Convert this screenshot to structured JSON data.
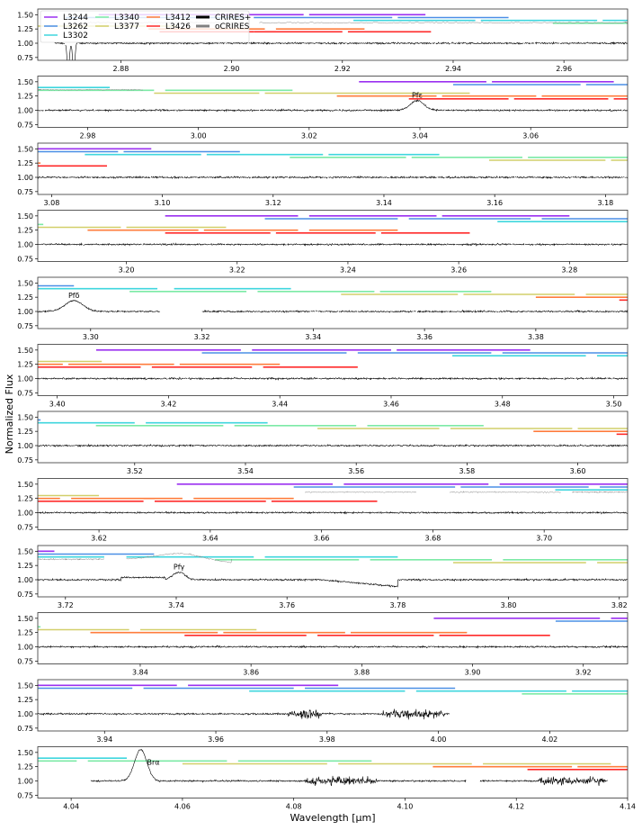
{
  "chart_data": {
    "type": "line",
    "title": "",
    "xlabel": "Wavelength [μm]",
    "ylabel": "Normalized Flux",
    "ylim": [
      0.7,
      1.6
    ],
    "yticks": [
      "0.75",
      "1.00",
      "1.25",
      "1.50"
    ],
    "grid": false,
    "legend_placement": "top-left of first panel",
    "panels": [
      {
        "xlim": [
          2.865,
          2.9715
        ],
        "xticks": [
          "2.88",
          "2.90",
          "2.92",
          "2.94",
          "2.96"
        ]
      },
      {
        "xlim": [
          2.971,
          3.0775
        ],
        "xticks": [
          "2.98",
          "3.00",
          "3.02",
          "3.04",
          "3.06"
        ]
      },
      {
        "xlim": [
          3.0775,
          3.184
        ],
        "xticks": [
          "3.08",
          "3.10",
          "3.12",
          "3.14",
          "3.16",
          "3.18"
        ]
      },
      {
        "xlim": [
          3.184,
          3.2905
        ],
        "xticks": [
          "3.20",
          "3.22",
          "3.24",
          "3.26",
          "3.28"
        ]
      },
      {
        "xlim": [
          3.2905,
          3.3965
        ],
        "xticks": [
          "3.30",
          "3.32",
          "3.34",
          "3.36",
          "3.38"
        ]
      },
      {
        "xlim": [
          3.3965,
          3.5025
        ],
        "xticks": [
          "3.40",
          "3.42",
          "3.44",
          "3.46",
          "3.48",
          "3.50"
        ]
      },
      {
        "xlim": [
          3.5025,
          3.609
        ],
        "xticks": [
          "3.52",
          "3.54",
          "3.56",
          "3.58",
          "3.60"
        ]
      },
      {
        "xlim": [
          3.609,
          3.715
        ],
        "xticks": [
          "3.62",
          "3.64",
          "3.66",
          "3.68",
          "3.70"
        ]
      },
      {
        "xlim": [
          3.715,
          3.8215
        ],
        "xticks": [
          "3.72",
          "3.74",
          "3.76",
          "3.78",
          "3.80",
          "3.82"
        ]
      },
      {
        "xlim": [
          3.8215,
          3.928
        ],
        "xticks": [
          "3.84",
          "3.86",
          "3.88",
          "3.90",
          "3.92"
        ]
      },
      {
        "xlim": [
          3.928,
          4.034
        ],
        "xticks": [
          "3.94",
          "3.96",
          "3.98",
          "4.00",
          "4.02"
        ]
      },
      {
        "xlim": [
          4.034,
          4.14
        ],
        "xticks": [
          "4.04",
          "4.06",
          "4.08",
          "4.10",
          "4.12",
          "4.14"
        ]
      }
    ],
    "legend": [
      {
        "label": "L3244",
        "color": "#9b30f0"
      },
      {
        "label": "L3262",
        "color": "#4a8fe6"
      },
      {
        "label": "L3302",
        "color": "#3fd6de"
      },
      {
        "label": "L3340",
        "color": "#7ceaa6"
      },
      {
        "label": "L3377",
        "color": "#d2cf6a"
      },
      {
        "label": "L3412",
        "color": "#ff7c3c"
      },
      {
        "label": "L3426",
        "color": "#ff2a2a"
      },
      {
        "label": "CRIRES+",
        "color": "#000000"
      },
      {
        "label": "oCRIRES",
        "color": "#808080"
      }
    ],
    "coverage": [
      {
        "setting": "L3244",
        "y": 1.5,
        "segments": [
          [
            2.876,
            2.913
          ],
          [
            2.914,
            2.935
          ],
          [
            3.029,
            3.052
          ],
          [
            3.053,
            3.075
          ],
          [
            3.0775,
            3.098
          ],
          [
            3.207,
            3.231
          ],
          [
            3.233,
            3.256
          ],
          [
            3.257,
            3.28
          ],
          [
            3.407,
            3.433
          ],
          [
            3.435,
            3.46
          ],
          [
            3.461,
            3.485
          ],
          [
            3.634,
            3.662
          ],
          [
            3.664,
            3.69
          ],
          [
            3.692,
            3.718
          ],
          [
            3.893,
            3.923
          ],
          [
            3.925,
            3.953
          ],
          [
            3.955,
            3.982
          ]
        ]
      },
      {
        "setting": "L3262",
        "y": 1.45,
        "segments": [
          [
            2.87,
            2.903
          ],
          [
            2.904,
            2.929
          ],
          [
            2.93,
            2.95
          ],
          [
            3.046,
            3.069
          ],
          [
            3.07,
            3.092
          ],
          [
            3.093,
            3.114
          ],
          [
            3.225,
            3.249
          ],
          [
            3.251,
            3.273
          ],
          [
            3.275,
            3.297
          ],
          [
            3.426,
            3.452
          ],
          [
            3.454,
            3.478
          ],
          [
            3.48,
            3.503
          ],
          [
            3.655,
            3.684
          ],
          [
            3.685,
            3.708
          ],
          [
            3.71,
            3.736
          ],
          [
            3.915,
            3.945
          ],
          [
            3.947,
            3.974
          ],
          [
            3.976,
            4.003
          ]
        ]
      },
      {
        "setting": "L3302",
        "y": 1.4,
        "segments": [
          [
            2.922,
            2.944
          ],
          [
            2.945,
            2.966
          ],
          [
            2.967,
            2.984
          ],
          [
            3.086,
            3.107
          ],
          [
            3.108,
            3.129
          ],
          [
            3.13,
            3.15
          ],
          [
            3.267,
            3.312
          ],
          [
            3.315,
            3.336
          ],
          [
            3.471,
            3.495
          ],
          [
            3.497,
            3.52
          ],
          [
            3.522,
            3.544
          ],
          [
            3.702,
            3.727
          ],
          [
            3.731,
            3.754
          ],
          [
            3.756,
            3.78
          ],
          [
            3.966,
            3.994
          ],
          [
            3.996,
            4.023
          ],
          [
            4.024,
            4.05
          ]
        ]
      },
      {
        "setting": "L3340",
        "y": 1.35,
        "segments": [
          [
            2.958,
            2.992
          ],
          [
            2.994,
            3.017
          ],
          [
            3.123,
            3.144
          ],
          [
            3.145,
            3.165
          ],
          [
            3.166,
            3.185
          ],
          [
            3.307,
            3.328
          ],
          [
            3.33,
            3.351
          ],
          [
            3.352,
            3.372
          ],
          [
            3.513,
            3.536
          ],
          [
            3.538,
            3.56
          ],
          [
            3.562,
            3.583
          ],
          [
            3.747,
            3.773
          ],
          [
            3.775,
            3.797
          ],
          [
            3.799,
            3.822
          ],
          [
            4.015,
            4.041
          ],
          [
            4.043,
            4.068
          ],
          [
            4.07,
            4.094
          ]
        ]
      },
      {
        "setting": "L3377",
        "y": 1.3,
        "segments": [
          [
            2.865,
            2.89
          ],
          [
            2.992,
            3.011
          ],
          [
            3.012,
            3.031
          ],
          [
            3.031,
            3.049
          ],
          [
            3.159,
            3.18
          ],
          [
            3.181,
            3.199
          ],
          [
            3.2,
            3.218
          ],
          [
            3.345,
            3.366
          ],
          [
            3.367,
            3.387
          ],
          [
            3.389,
            3.408
          ],
          [
            3.553,
            3.575
          ],
          [
            3.577,
            3.599
          ],
          [
            3.6,
            3.62
          ],
          [
            3.79,
            3.814
          ],
          [
            3.816,
            3.838
          ],
          [
            3.84,
            3.861
          ],
          [
            4.06,
            4.086
          ],
          [
            4.088,
            4.112
          ],
          [
            4.114,
            4.137
          ]
        ]
      },
      {
        "setting": "L3412",
        "y": 1.25,
        "segments": [
          [
            2.885,
            2.906
          ],
          [
            2.908,
            2.924
          ],
          [
            3.025,
            3.043
          ],
          [
            3.044,
            3.061
          ],
          [
            3.062,
            3.078
          ],
          [
            3.193,
            3.213
          ],
          [
            3.214,
            3.231
          ],
          [
            3.233,
            3.249
          ],
          [
            3.38,
            3.401
          ],
          [
            3.402,
            3.421
          ],
          [
            3.422,
            3.44
          ],
          [
            3.592,
            3.613
          ],
          [
            3.615,
            3.635
          ],
          [
            3.637,
            3.655
          ],
          [
            3.831,
            3.854
          ],
          [
            3.855,
            3.877
          ],
          [
            3.878,
            3.899
          ],
          [
            4.105,
            4.13
          ],
          [
            4.131,
            4.14
          ]
        ]
      },
      {
        "setting": "L3426",
        "y": 1.2,
        "segments": [
          [
            2.887,
            2.904
          ],
          [
            2.904,
            2.92
          ],
          [
            2.921,
            2.936
          ],
          [
            3.038,
            3.056
          ],
          [
            3.057,
            3.074
          ],
          [
            3.075,
            3.09
          ],
          [
            3.207,
            3.226
          ],
          [
            3.227,
            3.245
          ],
          [
            3.246,
            3.262
          ],
          [
            3.395,
            3.415
          ],
          [
            3.417,
            3.435
          ],
          [
            3.437,
            3.454
          ],
          [
            3.607,
            3.628
          ],
          [
            3.63,
            3.65
          ],
          [
            3.651,
            3.67
          ],
          [
            3.848,
            3.87
          ],
          [
            3.872,
            3.893
          ],
          [
            3.894,
            3.914
          ],
          [
            4.122,
            4.14
          ]
        ]
      }
    ],
    "ocrires_segments": [
      [
        2.873,
        2.902
      ],
      [
        2.905,
        2.9715
      ],
      [
        2.971,
        2.99
      ],
      [
        3.657,
        3.677
      ],
      [
        3.683,
        3.703
      ],
      [
        3.705,
        3.715
      ],
      [
        3.715,
        3.727
      ],
      [
        3.731,
        3.75
      ]
    ],
    "crires_range": [
      2.868,
      4.1365
    ],
    "crires_gaps": [
      [
        3.3125,
        3.32
      ],
      [
        4.002,
        4.0435
      ],
      [
        4.111,
        4.1135
      ]
    ],
    "emission_lines": [
      {
        "label": "Pfε",
        "wl": 3.0395,
        "amp": 0.17,
        "width": 0.0012
      },
      {
        "label": "Pfδ",
        "wl": 3.297,
        "amp": 0.19,
        "width": 0.0016
      },
      {
        "label": "Pfγ",
        "wl": 3.7405,
        "amp": 0.13,
        "width": 0.0011
      },
      {
        "label": "Brα",
        "wl": 4.0525,
        "amp": 0.55,
        "width": 0.0011
      }
    ],
    "absorption_features": [
      {
        "wl": 2.8705,
        "depth": 0.5,
        "width": 0.0002
      },
      {
        "wl": 2.8715,
        "depth": 0.5,
        "width": 0.0002
      }
    ],
    "noisy_regions": [
      [
        3.973,
        3.979
      ],
      [
        3.99,
        4.001
      ],
      [
        4.082,
        4.095
      ],
      [
        4.124,
        4.136
      ]
    ]
  }
}
